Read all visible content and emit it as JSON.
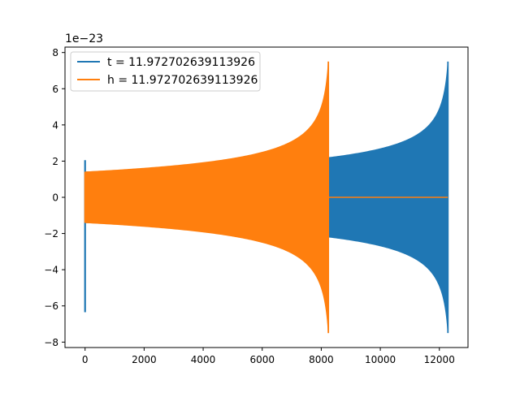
{
  "chart_data": {
    "type": "line",
    "title": "",
    "xlabel": "",
    "ylabel": "",
    "offset_text": "1e−23",
    "xlim": [
      -680,
      12970
    ],
    "ylim": [
      -8.3,
      8.3
    ],
    "x_ticks": [
      0,
      2000,
      4000,
      6000,
      8000,
      10000,
      12000
    ],
    "x_tick_labels": [
      "0",
      "2000",
      "4000",
      "6000",
      "8000",
      "10000",
      "12000"
    ],
    "y_ticks": [
      -8,
      -6,
      -4,
      -2,
      0,
      2,
      4,
      6,
      8
    ],
    "y_tick_labels": [
      "−8",
      "−6",
      "−4",
      "−2",
      "0",
      "2",
      "4",
      "6",
      "8"
    ],
    "grid": false,
    "legend_position": "top-left",
    "series": [
      {
        "name": "t = 11.972702639113926",
        "color": "#1f77b4",
        "kind": "chirp",
        "x_start": 0,
        "x_end": 12290,
        "amplitude_start": 1.4,
        "amplitude_at_8240": 1.6,
        "amplitude_peak": 7.5,
        "spike_at_start": [
          -6.35,
          2.05
        ],
        "flat_after_end": false
      },
      {
        "name": "h = 11.972702639113926",
        "color": "#ff7f0e",
        "kind": "chirp",
        "x_start": 0,
        "x_end": 8240,
        "amplitude_start": 1.4,
        "amplitude_peak": 7.5,
        "flat_after_end": true,
        "flat_value": 0,
        "flat_x_end": 12290
      }
    ]
  }
}
